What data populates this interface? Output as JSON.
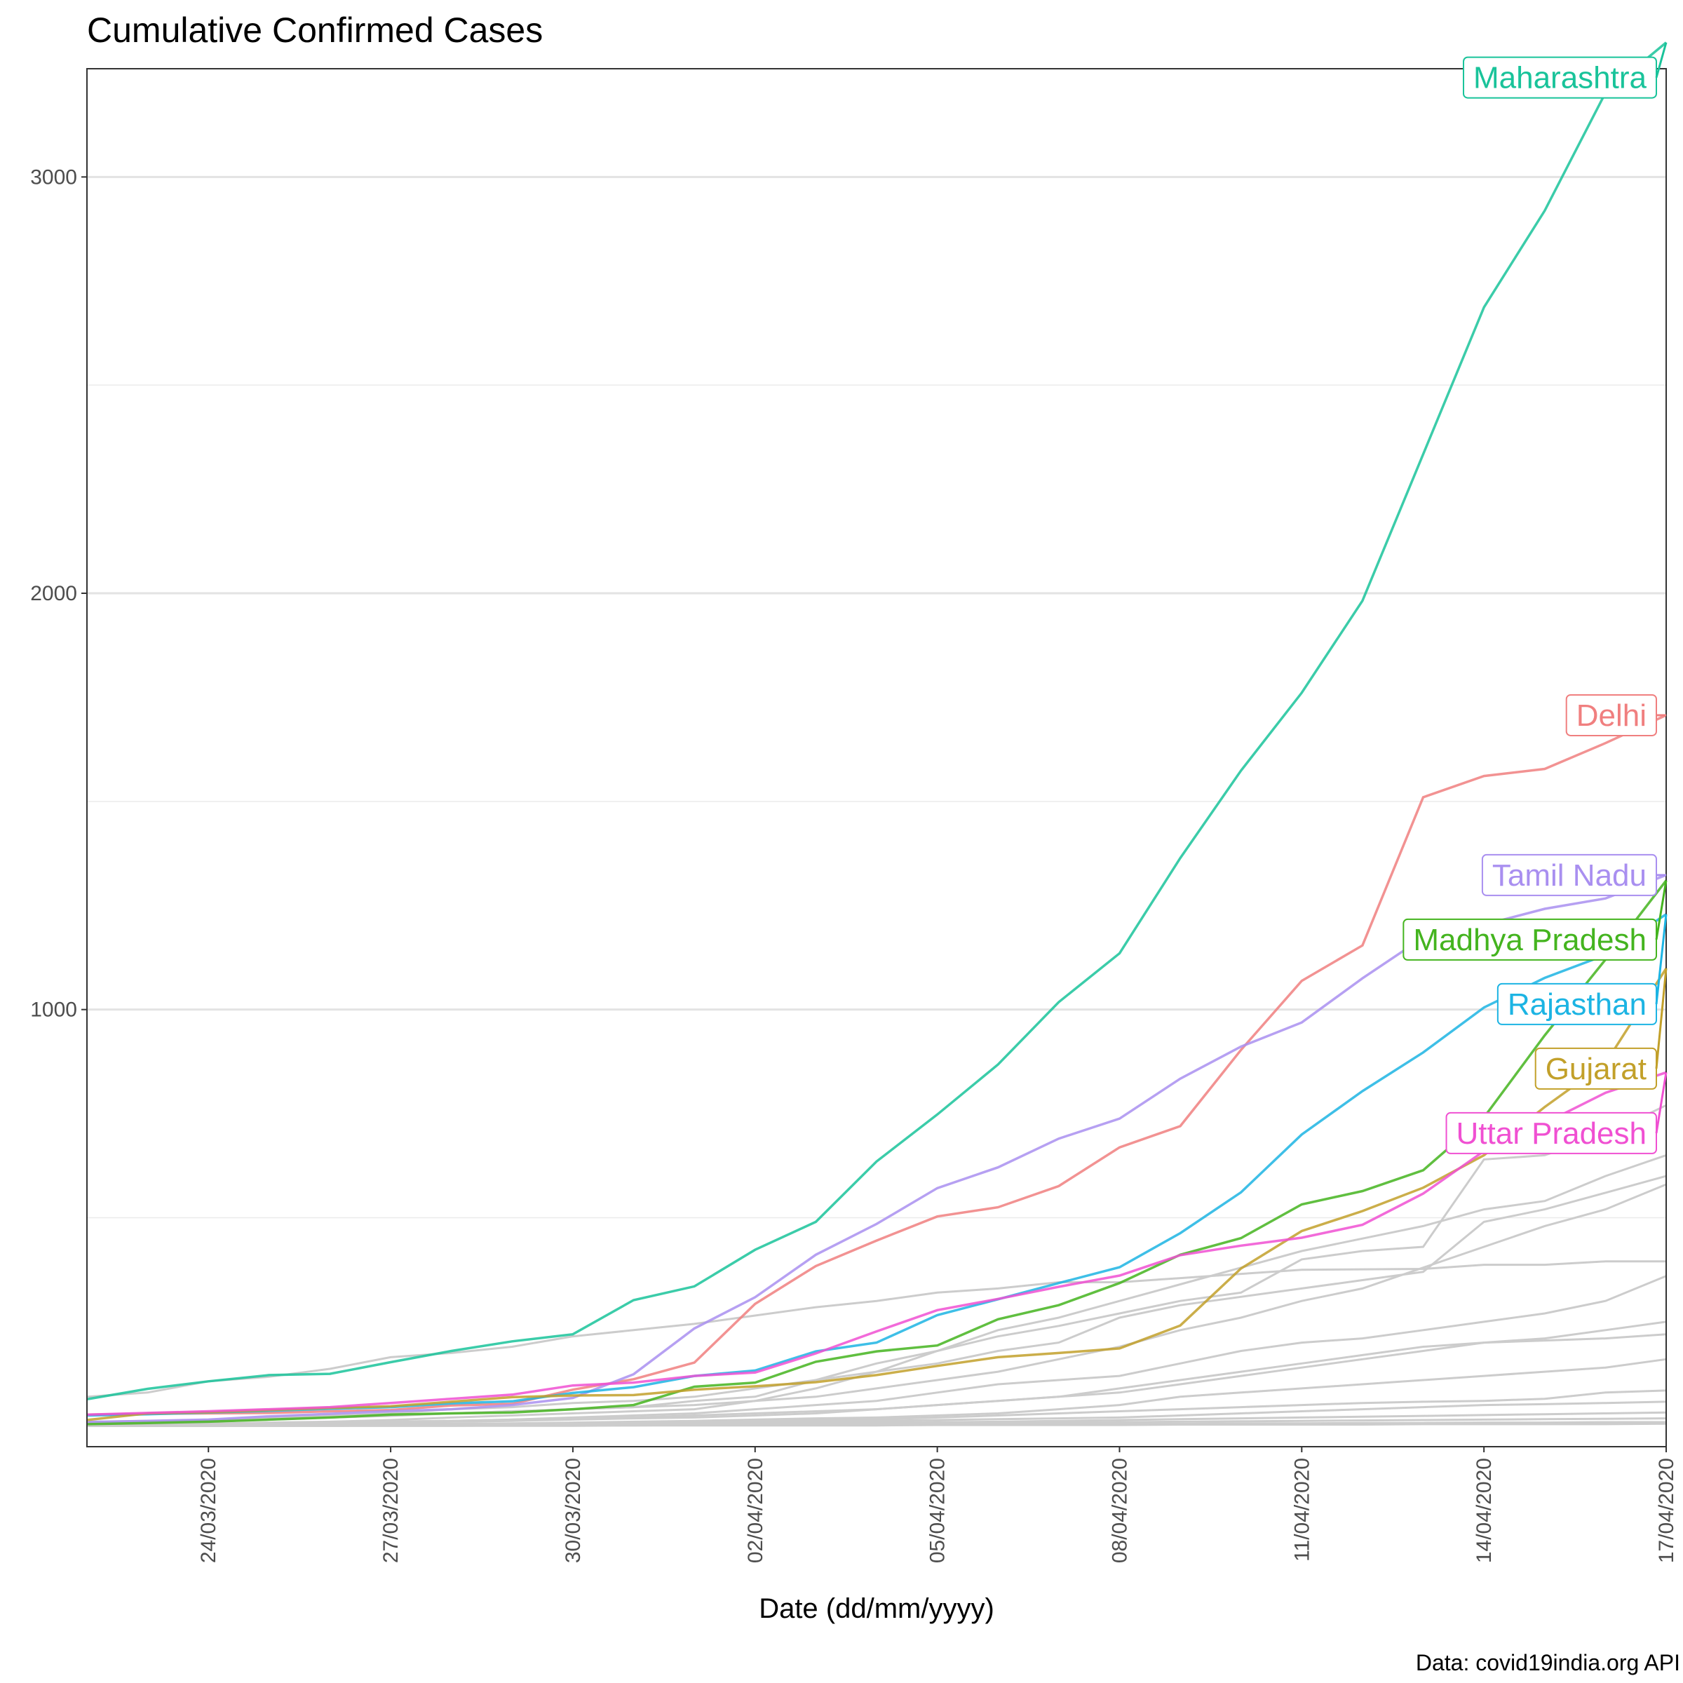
{
  "chart_data": {
    "type": "line",
    "title": "Cumulative Confirmed Cases",
    "xlabel": "Date (dd/mm/yyyy)",
    "ylabel": "",
    "caption": "Data: covid19india.org API",
    "x_ticks": [
      "24/03/2020",
      "27/03/2020",
      "30/03/2020",
      "02/04/2020",
      "05/04/2020",
      "08/04/2020",
      "11/04/2020",
      "14/04/2020",
      "17/04/2020"
    ],
    "y_ticks": [
      1000,
      2000,
      3000
    ],
    "xlim": [
      "22/03/2020",
      "17/04/2020"
    ],
    "ylim": [
      -50,
      3260
    ],
    "grid": true,
    "legend": "direct-labels",
    "dates": [
      "22/03/2020",
      "23/03/2020",
      "24/03/2020",
      "25/03/2020",
      "26/03/2020",
      "27/03/2020",
      "28/03/2020",
      "29/03/2020",
      "30/03/2020",
      "31/03/2020",
      "01/04/2020",
      "02/04/2020",
      "03/04/2020",
      "04/04/2020",
      "05/04/2020",
      "06/04/2020",
      "07/04/2020",
      "08/04/2020",
      "09/04/2020",
      "10/04/2020",
      "11/04/2020",
      "12/04/2020",
      "13/04/2020",
      "14/04/2020",
      "15/04/2020",
      "16/04/2020",
      "17/04/2020"
    ],
    "series": [
      {
        "name": "Maharashtra",
        "color": "#19c39a",
        "values": [
          64,
          89,
          107,
          122,
          125,
          153,
          180,
          203,
          220,
          302,
          335,
          423,
          490,
          635,
          748,
          868,
          1018,
          1135,
          1364,
          1574,
          1761,
          1982,
          2334,
          2687,
          2919,
          3202,
          3323
        ]
      },
      {
        "name": "Delhi",
        "color": "#f07f7f",
        "values": [
          27,
          29,
          30,
          31,
          35,
          38,
          49,
          53,
          87,
          112,
          152,
          293,
          384,
          445,
          503,
          525,
          576,
          669,
          720,
          903,
          1069,
          1154,
          1510,
          1561,
          1578,
          1640,
          1707
        ]
      },
      {
        "name": "Tamil Nadu",
        "color": "#a98ff0",
        "values": [
          9,
          12,
          15,
          23,
          29,
          35,
          40,
          50,
          67,
          124,
          234,
          309,
          411,
          485,
          571,
          621,
          690,
          738,
          834,
          911,
          969,
          1075,
          1173,
          1204,
          1242,
          1267,
          1323
        ]
      },
      {
        "name": "Madhya Pradesh",
        "color": "#44b41f",
        "values": [
          4,
          7,
          10,
          15,
          20,
          27,
          30,
          32,
          40,
          50,
          94,
          104,
          154,
          179,
          193,
          256,
          290,
          343,
          411,
          451,
          532,
          564,
          614,
          741,
          938,
          1120,
          1310
        ]
      },
      {
        "name": "Rajasthan",
        "color": "#1cb4e3",
        "values": [
          25,
          28,
          32,
          36,
          41,
          45,
          54,
          59,
          79,
          93,
          120,
          133,
          179,
          200,
          266,
          304,
          343,
          381,
          463,
          561,
          700,
          804,
          897,
          1005,
          1076,
          1131,
          1229
        ]
      },
      {
        "name": "Gujarat",
        "color": "#c2a02a",
        "values": [
          14,
          30,
          33,
          38,
          43,
          47,
          58,
          69,
          73,
          74,
          87,
          95,
          105,
          122,
          144,
          165,
          175,
          186,
          241,
          378,
          468,
          516,
          572,
          650,
          766,
          871,
          1099
        ]
      },
      {
        "name": "Uttar Pradesh",
        "color": "#f050d2",
        "values": [
          27,
          31,
          35,
          40,
          45,
          55,
          65,
          75,
          97,
          104,
          120,
          128,
          174,
          227,
          278,
          305,
          334,
          361,
          410,
          433,
          452,
          483,
          558,
          660,
          727,
          800,
          849
        ]
      }
    ],
    "background_series": [
      {
        "values": [
          70,
          80,
          107,
          118,
          137,
          165,
          175,
          190,
          215,
          230,
          245,
          265,
          285,
          300,
          320,
          330,
          345,
          345,
          355,
          365,
          375,
          376,
          377,
          387,
          387,
          395,
          395
        ]
      },
      {
        "values": [
          10,
          12,
          14,
          20,
          25,
          30,
          40,
          45,
          55,
          60,
          70,
          90,
          110,
          130,
          150,
          180,
          200,
          260,
          290,
          310,
          330,
          350,
          370,
          490,
          520,
          560,
          600
        ]
      },
      {
        "values": [
          5,
          8,
          12,
          15,
          20,
          24,
          30,
          35,
          40,
          45,
          50,
          60,
          70,
          90,
          110,
          130,
          160,
          190,
          230,
          260,
          300,
          330,
          380,
          430,
          480,
          520,
          580
        ]
      },
      {
        "values": [
          0,
          2,
          5,
          8,
          10,
          14,
          20,
          25,
          30,
          35,
          40,
          60,
          90,
          130,
          180,
          230,
          260,
          300,
          340,
          380,
          420,
          450,
          480,
          520,
          540,
          600,
          650
        ]
      },
      {
        "values": [
          0,
          5,
          10,
          15,
          20,
          25,
          30,
          35,
          40,
          45,
          60,
          70,
          110,
          150,
          180,
          215,
          240,
          270,
          300,
          320,
          400,
          420,
          430,
          640,
          650,
          700,
          770
        ]
      },
      {
        "values": [
          0,
          1,
          3,
          5,
          8,
          10,
          12,
          15,
          20,
          25,
          30,
          40,
          50,
          60,
          80,
          100,
          110,
          120,
          150,
          180,
          200,
          210,
          230,
          250,
          270,
          300,
          360
        ]
      },
      {
        "values": [
          0,
          2,
          4,
          6,
          8,
          10,
          12,
          15,
          18,
          20,
          25,
          30,
          35,
          40,
          50,
          60,
          70,
          80,
          100,
          120,
          140,
          160,
          180,
          200,
          210,
          230,
          250
        ]
      },
      {
        "values": [
          0,
          1,
          2,
          3,
          5,
          8,
          10,
          12,
          15,
          18,
          20,
          25,
          30,
          40,
          50,
          60,
          70,
          90,
          110,
          130,
          150,
          170,
          190,
          200,
          205,
          210,
          220
        ]
      },
      {
        "values": [
          0,
          0,
          1,
          2,
          3,
          4,
          5,
          6,
          8,
          10,
          12,
          15,
          18,
          20,
          25,
          30,
          40,
          50,
          70,
          80,
          90,
          100,
          110,
          120,
          130,
          140,
          160
        ]
      },
      {
        "values": [
          0,
          0,
          0,
          1,
          2,
          3,
          4,
          5,
          6,
          8,
          10,
          12,
          14,
          16,
          20,
          25,
          30,
          35,
          40,
          45,
          50,
          55,
          58,
          60,
          65,
          80,
          85
        ]
      },
      {
        "values": [
          0,
          0,
          0,
          1,
          1,
          2,
          3,
          4,
          5,
          6,
          7,
          8,
          10,
          12,
          14,
          16,
          18,
          20,
          25,
          30,
          35,
          40,
          45,
          50,
          52,
          55,
          58
        ]
      },
      {
        "values": [
          0,
          0,
          0,
          0,
          1,
          1,
          2,
          2,
          3,
          4,
          5,
          6,
          7,
          8,
          9,
          10,
          12,
          14,
          16,
          18,
          20,
          22,
          24,
          26,
          28,
          30,
          32
        ]
      },
      {
        "values": [
          0,
          0,
          0,
          0,
          0,
          1,
          1,
          1,
          2,
          2,
          3,
          3,
          4,
          5,
          6,
          7,
          8,
          9,
          10,
          11,
          12,
          13,
          14,
          15,
          16,
          17,
          18
        ]
      },
      {
        "values": [
          0,
          0,
          0,
          0,
          0,
          0,
          0,
          1,
          1,
          1,
          2,
          2,
          2,
          3,
          3,
          4,
          4,
          5,
          5,
          6,
          6,
          7,
          7,
          8,
          8,
          9,
          9
        ]
      },
      {
        "values": [
          0,
          0,
          0,
          0,
          0,
          0,
          0,
          0,
          0,
          1,
          1,
          1,
          1,
          1,
          2,
          2,
          2,
          2,
          3,
          3,
          3,
          3,
          4,
          4,
          4,
          4,
          5
        ]
      }
    ]
  }
}
